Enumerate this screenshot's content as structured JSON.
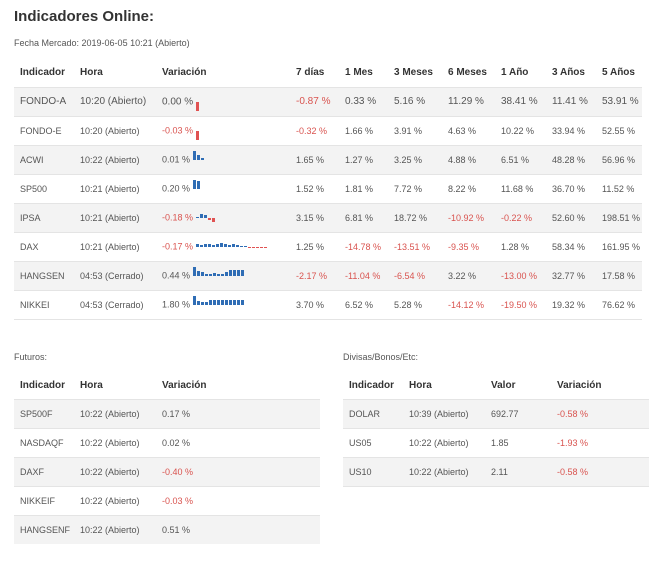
{
  "title": "Indicadores Online:",
  "market_date": "Fecha Mercado: 2019-06-05 10:21 (Abierto)",
  "colors": {
    "negative": "#d9534f",
    "bar_blue": "#2f6db5",
    "bar_red": "#e05252"
  },
  "main": {
    "headers": [
      "Indicador",
      "Hora",
      "Variación",
      "7 días",
      "1 Mes",
      "3 Meses",
      "6 Meses",
      "1 Año",
      "3 Años",
      "5 Años"
    ],
    "rows": [
      {
        "name": "FONDO-A",
        "time": "10:20 (Abierto)",
        "var": "0.00 %",
        "d7": "-0.87 %",
        "m1": "0.33 %",
        "m3": "5.16 %",
        "m6": "11.29 %",
        "y1": "38.41 %",
        "y3": "11.41 %",
        "y5": "53.91 %",
        "spark": [
          -9
        ]
      },
      {
        "name": "FONDO-E",
        "time": "10:20 (Abierto)",
        "var": "-0.03 %",
        "d7": "-0.32 %",
        "m1": "1.66 %",
        "m3": "3.91 %",
        "m6": "4.63 %",
        "y1": "10.22 %",
        "y3": "33.94 %",
        "y5": "52.55 %",
        "spark": [
          -9
        ]
      },
      {
        "name": "ACWI",
        "time": "10:22 (Abierto)",
        "var": "0.01 %",
        "d7": "1.65 %",
        "m1": "1.27 %",
        "m3": "3.25 %",
        "m6": "4.88 %",
        "y1": "6.51 %",
        "y3": "48.28 %",
        "y5": "56.96 %",
        "spark": [
          9,
          5,
          2
        ]
      },
      {
        "name": "SP500",
        "time": "10:21 (Abierto)",
        "var": "0.20 %",
        "d7": "1.52 %",
        "m1": "1.81 %",
        "m3": "7.72 %",
        "m6": "8.22 %",
        "y1": "11.68 %",
        "y3": "36.70 %",
        "y5": "11.52 %",
        "spark": [
          9,
          8
        ]
      },
      {
        "name": "IPSA",
        "time": "10:21 (Abierto)",
        "var": "-0.18 %",
        "d7": "3.15 %",
        "m1": "6.81 %",
        "m3": "18.72 %",
        "m6": "-10.92 %",
        "y1": "-0.22 %",
        "y3": "52.60 %",
        "y5": "198.51 %",
        "spark": [
          1,
          4,
          3,
          -2,
          -4
        ]
      },
      {
        "name": "DAX",
        "time": "10:21 (Abierto)",
        "var": "-0.17 %",
        "d7": "1.25 %",
        "m1": "-14.78 %",
        "m3": "-13.51 %",
        "m6": "-9.35 %",
        "y1": "1.28 %",
        "y3": "58.34 %",
        "y5": "161.95 %",
        "spark": [
          3,
          2,
          3,
          3,
          2,
          3,
          4,
          3,
          2,
          3,
          2,
          1,
          1,
          -1,
          -1,
          -1,
          -1,
          -1
        ]
      },
      {
        "name": "HANGSEN",
        "time": "04:53 (Cerrado)",
        "var": "0.44 %",
        "d7": "-2.17 %",
        "m1": "-11.04 %",
        "m3": "-6.54 %",
        "m6": "3.22 %",
        "y1": "-13.00 %",
        "y3": "32.77 %",
        "y5": "17.58 %",
        "spark": [
          9,
          5,
          4,
          2,
          2,
          3,
          2,
          2,
          4,
          6,
          6,
          6,
          6
        ]
      },
      {
        "name": "NIKKEI",
        "time": "04:53 (Cerrado)",
        "var": "1.80 %",
        "d7": "3.70 %",
        "m1": "6.52 %",
        "m3": "5.28 %",
        "m6": "-14.12 %",
        "y1": "-19.50 %",
        "y3": "19.32 %",
        "y5": "76.62 %",
        "spark": [
          9,
          4,
          3,
          3,
          5,
          5,
          5,
          5,
          5,
          5,
          5,
          5,
          5
        ]
      }
    ]
  },
  "futuros": {
    "label": "Futuros:",
    "headers": [
      "Indicador",
      "Hora",
      "Variación"
    ],
    "rows": [
      {
        "name": "SP500F",
        "time": "10:22 (Abierto)",
        "var": "0.17 %"
      },
      {
        "name": "NASDAQF",
        "time": "10:22 (Abierto)",
        "var": "0.02 %"
      },
      {
        "name": "DAXF",
        "time": "10:22 (Abierto)",
        "var": "-0.40 %"
      },
      {
        "name": "NIKKEIF",
        "time": "10:22 (Abierto)",
        "var": "-0.03 %"
      },
      {
        "name": "HANGSENF",
        "time": "10:22 (Abierto)",
        "var": "0.51 %"
      }
    ]
  },
  "divisas": {
    "label": "Divisas/Bonos/Etc:",
    "headers": [
      "Indicador",
      "Hora",
      "Valor",
      "Variación"
    ],
    "rows": [
      {
        "name": "DOLAR",
        "time": "10:39 (Abierto)",
        "val": "692.77",
        "var": "-0.58 %"
      },
      {
        "name": "US05",
        "time": "10:22 (Abierto)",
        "val": "1.85",
        "var": "-1.93 %"
      },
      {
        "name": "US10",
        "time": "10:22 (Abierto)",
        "val": "2.11",
        "var": "-0.58 %"
      }
    ]
  }
}
